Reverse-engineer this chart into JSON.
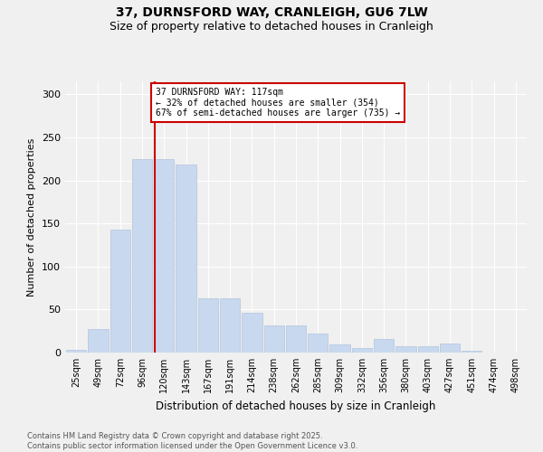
{
  "title_line1": "37, DURNSFORD WAY, CRANLEIGH, GU6 7LW",
  "title_line2": "Size of property relative to detached houses in Cranleigh",
  "xlabel": "Distribution of detached houses by size in Cranleigh",
  "ylabel": "Number of detached properties",
  "bar_color": "#c8d8ee",
  "bar_edge_color": "#b0c4de",
  "bin_labels": [
    "25sqm",
    "49sqm",
    "72sqm",
    "96sqm",
    "120sqm",
    "143sqm",
    "167sqm",
    "191sqm",
    "214sqm",
    "238sqm",
    "262sqm",
    "285sqm",
    "309sqm",
    "332sqm",
    "356sqm",
    "380sqm",
    "403sqm",
    "427sqm",
    "451sqm",
    "474sqm",
    "498sqm"
  ],
  "bar_values": [
    3,
    27,
    143,
    225,
    225,
    218,
    63,
    63,
    46,
    32,
    32,
    22,
    9,
    5,
    16,
    7,
    7,
    11,
    2,
    0,
    0
  ],
  "vline_color": "#cc0000",
  "vline_pos": 3.58,
  "annotation_text": "37 DURNSFORD WAY: 117sqm\n← 32% of detached houses are smaller (354)\n67% of semi-detached houses are larger (735) →",
  "annotation_box_color": "#ffffff",
  "annotation_border_color": "#cc0000",
  "ylim": [
    0,
    315
  ],
  "yticks": [
    0,
    50,
    100,
    150,
    200,
    250,
    300
  ],
  "footnote": "Contains HM Land Registry data © Crown copyright and database right 2025.\nContains public sector information licensed under the Open Government Licence v3.0.",
  "background_color": "#f0f0f0",
  "grid_color": "#ffffff",
  "plot_bg_color": "#f0f0f0"
}
